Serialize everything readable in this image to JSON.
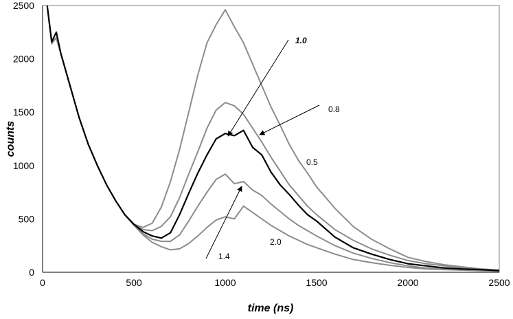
{
  "chart_data": {
    "type": "line",
    "title": "",
    "xlabel": "time (ns)",
    "ylabel": "counts",
    "xlim": [
      0,
      2500
    ],
    "ylim": [
      0,
      2500
    ],
    "xticks": [
      "0",
      "500",
      "1000",
      "1500",
      "2000",
      "2500"
    ],
    "yticks": [
      "0",
      "500",
      "1000",
      "1500",
      "2000",
      "2500"
    ],
    "x": [
      25,
      50,
      75,
      100,
      150,
      200,
      250,
      300,
      350,
      400,
      450,
      500,
      550,
      600,
      650,
      700,
      750,
      800,
      850,
      900,
      950,
      1000,
      1050,
      1100,
      1150,
      1200,
      1250,
      1300,
      1350,
      1400,
      1450,
      1500,
      1600,
      1700,
      1800,
      1900,
      2000,
      2100,
      2200,
      2300,
      2400,
      2500
    ],
    "series": [
      {
        "name": "0.5",
        "color": "#8c8c8c",
        "values": [
          2500,
          2170,
          2190,
          2050,
          1750,
          1450,
          1200,
          1000,
          820,
          670,
          540,
          450,
          420,
          460,
          610,
          850,
          1150,
          1500,
          1850,
          2150,
          2320,
          2460,
          2300,
          2150,
          1950,
          1750,
          1550,
          1380,
          1200,
          1050,
          930,
          800,
          600,
          430,
          310,
          220,
          140,
          100,
          70,
          50,
          30,
          20
        ]
      },
      {
        "name": "0.8",
        "color": "#8c8c8c",
        "values": [
          2500,
          2150,
          2200,
          2050,
          1750,
          1450,
          1200,
          1000,
          820,
          670,
          540,
          450,
          400,
          390,
          430,
          520,
          700,
          920,
          1130,
          1350,
          1520,
          1590,
          1560,
          1480,
          1350,
          1220,
          1080,
          950,
          820,
          720,
          620,
          540,
          400,
          300,
          220,
          160,
          110,
          80,
          60,
          40,
          30,
          20
        ]
      },
      {
        "name": "1.0",
        "color": "#000000",
        "values": [
          2500,
          2160,
          2250,
          2050,
          1750,
          1450,
          1200,
          1000,
          820,
          670,
          540,
          450,
          380,
          340,
          320,
          370,
          540,
          740,
          930,
          1100,
          1250,
          1300,
          1280,
          1330,
          1170,
          1100,
          940,
          820,
          730,
          630,
          540,
          480,
          330,
          230,
          170,
          120,
          80,
          60,
          40,
          30,
          25,
          15
        ]
      },
      {
        "name": "1.4",
        "color": "#8c8c8c",
        "values": [
          2500,
          2150,
          2200,
          2050,
          1750,
          1450,
          1200,
          1000,
          820,
          670,
          540,
          440,
          360,
          310,
          290,
          290,
          350,
          480,
          620,
          750,
          870,
          920,
          830,
          850,
          770,
          720,
          640,
          570,
          500,
          440,
          390,
          340,
          250,
          180,
          130,
          90,
          60,
          40,
          30,
          25,
          20,
          15
        ]
      },
      {
        "name": "2.0",
        "color": "#8c8c8c",
        "values": [
          2500,
          2140,
          2200,
          2050,
          1750,
          1450,
          1200,
          1000,
          820,
          670,
          540,
          440,
          350,
          280,
          240,
          210,
          220,
          270,
          340,
          420,
          490,
          520,
          500,
          620,
          560,
          500,
          440,
          390,
          340,
          300,
          260,
          230,
          170,
          120,
          90,
          65,
          45,
          30,
          25,
          20,
          15,
          10
        ]
      }
    ],
    "annotations": {
      "a10": "1.0",
      "a08": "0.8",
      "a05": "0.5",
      "a20": "2.0",
      "a14": "1.4"
    }
  }
}
